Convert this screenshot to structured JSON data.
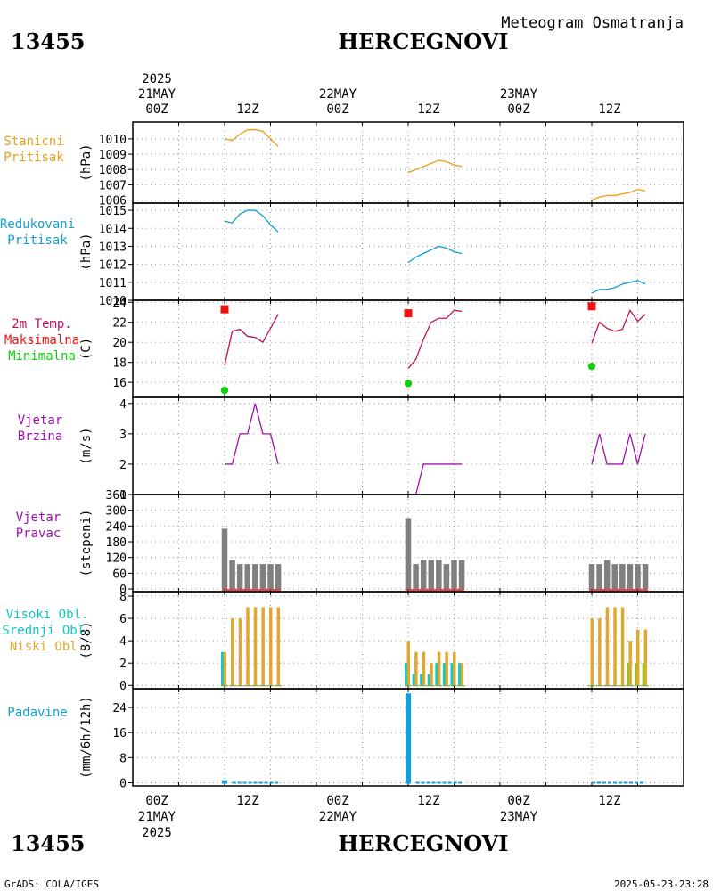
{
  "header": {
    "station_id": "13455",
    "station_name": "HERCEGNOVI",
    "subtitle": "Meteogram Osmatranja"
  },
  "footer": {
    "station_id": "13455",
    "station_name": "HERCEGNOVI",
    "credit": "GrADS: COLA/IGES",
    "timestamp": "2025-05-23-23:28"
  },
  "time_axis": {
    "year": "2025",
    "days": [
      "21MAY",
      "22MAY",
      "23MAY"
    ],
    "hour_labels": [
      "00Z",
      "12Z",
      "00Z",
      "12Z",
      "00Z",
      "12Z"
    ],
    "range_hours": [
      -6,
      66
    ]
  },
  "colors": {
    "pressure": "#e8a010",
    "reduced_pressure": "#10a0d0",
    "temperature": "#c0105a",
    "tmax": "#f01010",
    "tmin": "#10d010",
    "wind": "#a010b0",
    "direction_bar": "#808080",
    "direction_base": "#e01010",
    "high_cloud": "#10c8c8",
    "mid_cloud": "#90c030",
    "low_cloud": "#e0a830",
    "precip": "#10a0e0"
  },
  "chart_data": [
    {
      "type": "line",
      "id": "station_pressure",
      "title_lines": [
        "Stanicni",
        "Pritisak"
      ],
      "ylabel": "(hPa)",
      "ylim": [
        1005.8,
        1011.1
      ],
      "ticks": [
        1006,
        1007,
        1008,
        1009,
        1010
      ],
      "series": [
        {
          "name": "Stanicni Pritisak",
          "x": [
            6,
            7,
            8,
            9,
            10,
            11,
            12,
            13
          ],
          "values": [
            1010.0,
            1009.9,
            1010.3,
            1010.6,
            1010.6,
            1010.5,
            1010.0,
            1009.5
          ]
        },
        {
          "name": "Stanicni Pritisak",
          "x": [
            30,
            31,
            32,
            33,
            34,
            35,
            36,
            37
          ],
          "values": [
            1007.8,
            1008.0,
            1008.2,
            1008.4,
            1008.6,
            1008.5,
            1008.3,
            1008.2
          ]
        },
        {
          "name": "Stanicni Pritisak",
          "x": [
            54,
            55,
            56,
            57,
            58,
            59,
            60,
            61
          ],
          "values": [
            1006.0,
            1006.2,
            1006.3,
            1006.3,
            1006.4,
            1006.5,
            1006.7,
            1006.6
          ]
        }
      ]
    },
    {
      "type": "line",
      "id": "reduced_pressure",
      "title_lines": [
        "Redukovani",
        "Pritisak"
      ],
      "ylabel": "(hPa)",
      "ylim": [
        1010.0,
        1015.4
      ],
      "ticks": [
        1010,
        1011,
        1012,
        1013,
        1014,
        1015
      ],
      "series": [
        {
          "name": "Redukovani Pritisak",
          "x": [
            6,
            7,
            8,
            9,
            10,
            11,
            12,
            13
          ],
          "values": [
            1014.4,
            1014.3,
            1014.8,
            1015.0,
            1015.0,
            1014.7,
            1014.2,
            1013.8
          ]
        },
        {
          "name": "Redukovani Pritisak",
          "x": [
            30,
            31,
            32,
            33,
            34,
            35,
            36,
            37
          ],
          "values": [
            1012.1,
            1012.4,
            1012.6,
            1012.8,
            1013.0,
            1012.9,
            1012.7,
            1012.6
          ]
        },
        {
          "name": "Redukovani Pritisak",
          "x": [
            54,
            55,
            56,
            57,
            58,
            59,
            60,
            61
          ],
          "values": [
            1010.4,
            1010.6,
            1010.6,
            1010.7,
            1010.9,
            1011.0,
            1011.1,
            1010.9
          ]
        }
      ]
    },
    {
      "type": "line",
      "id": "temperature",
      "title_lines": [
        "2m Temp.",
        "Maksimalna",
        "Minimalna"
      ],
      "ylabel": "(C)",
      "ylim": [
        14.5,
        24.2
      ],
      "ticks": [
        16,
        18,
        20,
        22,
        24
      ],
      "series": [
        {
          "name": "2m Temp.",
          "x": [
            6,
            7,
            8,
            9,
            10,
            11,
            12,
            13
          ],
          "values": [
            17.7,
            21.1,
            21.3,
            20.6,
            20.5,
            20.0,
            21.4,
            22.8
          ]
        },
        {
          "name": "2m Temp.",
          "x": [
            30,
            31,
            32,
            33,
            34,
            35,
            36,
            37
          ],
          "values": [
            17.4,
            18.3,
            20.3,
            22.0,
            22.4,
            22.4,
            23.2,
            23.1
          ]
        },
        {
          "name": "2m Temp.",
          "x": [
            54,
            55,
            56,
            57,
            58,
            59,
            60,
            61
          ],
          "values": [
            19.9,
            22.0,
            21.4,
            21.1,
            21.3,
            23.2,
            22.1,
            22.8
          ]
        }
      ],
      "max_points": {
        "name": "Maksimalna",
        "x": [
          6,
          30,
          54
        ],
        "values": [
          23.3,
          22.9,
          23.6
        ]
      },
      "min_points": {
        "name": "Minimalna",
        "x": [
          6,
          30,
          54
        ],
        "values": [
          15.2,
          15.9,
          17.6
        ]
      }
    },
    {
      "type": "line",
      "id": "wind_speed",
      "title_lines": [
        "Vjetar",
        "Brzina"
      ],
      "ylabel": "(m/s)",
      "ylim": [
        1,
        4.2
      ],
      "ticks": [
        1,
        2,
        3,
        4
      ],
      "series": [
        {
          "name": "Vjetar Brzina",
          "x": [
            6,
            7,
            8,
            9,
            10,
            11,
            12,
            13
          ],
          "values": [
            2,
            2,
            3,
            3,
            4,
            3,
            3,
            2
          ]
        },
        {
          "name": "Vjetar Brzina",
          "x": [
            30,
            31,
            32,
            33,
            34,
            35,
            36,
            37
          ],
          "values": [
            1,
            1,
            2,
            2,
            2,
            2,
            2,
            2
          ]
        },
        {
          "name": "Vjetar Brzina",
          "x": [
            54,
            55,
            56,
            57,
            58,
            59,
            60,
            61
          ],
          "values": [
            2,
            3,
            2,
            2,
            2,
            3,
            2,
            3
          ]
        }
      ]
    },
    {
      "type": "bar",
      "id": "wind_direction",
      "title_lines": [
        "Vjetar",
        "Pravac"
      ],
      "ylabel": "(stepeni)",
      "ylim": [
        -10,
        360
      ],
      "ticks": [
        0,
        60,
        120,
        180,
        240,
        300,
        360
      ],
      "x": [
        6,
        7,
        8,
        9,
        10,
        11,
        12,
        13,
        30,
        31,
        32,
        33,
        34,
        35,
        36,
        37,
        54,
        55,
        56,
        57,
        58,
        59,
        60,
        61
      ],
      "values": [
        230,
        110,
        95,
        95,
        95,
        95,
        95,
        95,
        270,
        95,
        110,
        110,
        110,
        95,
        110,
        110,
        95,
        95,
        110,
        95,
        95,
        95,
        95,
        95
      ]
    },
    {
      "type": "bar",
      "id": "clouds",
      "title_lines": [
        "Visoki Obl.",
        "Srednji Obl.",
        "Niski Obl."
      ],
      "ylabel": "(8/8)",
      "ylim": [
        -0.3,
        8.4
      ],
      "ticks": [
        0,
        2,
        4,
        6,
        8
      ],
      "x": [
        6,
        7,
        8,
        9,
        10,
        11,
        12,
        13,
        30,
        31,
        32,
        33,
        34,
        35,
        36,
        37,
        54,
        55,
        56,
        57,
        58,
        59,
        60,
        61
      ],
      "series": [
        {
          "name": "Niski Obl.",
          "values": [
            3,
            6,
            6,
            7,
            7,
            7,
            7,
            7,
            4,
            3,
            3,
            2,
            3,
            3,
            3,
            2,
            6,
            6,
            7,
            7,
            7,
            4,
            5,
            5
          ]
        },
        {
          "name": "Srednji Obl.",
          "values": [
            2,
            0,
            0,
            0,
            0,
            0,
            0,
            0,
            2,
            1,
            1,
            1,
            2,
            2,
            2,
            2,
            0,
            0,
            0,
            0,
            0,
            2,
            2,
            2
          ]
        },
        {
          "name": "Visoki Obl.",
          "values": [
            3,
            0,
            0,
            0,
            0,
            0,
            0,
            0,
            2,
            1,
            1,
            1,
            2,
            2,
            2,
            2,
            0,
            0,
            0,
            0,
            0,
            0,
            0,
            0
          ]
        }
      ]
    },
    {
      "type": "bar",
      "id": "precipitation",
      "title_lines": [
        "Padavine"
      ],
      "ylabel": "(mm/6h/12h)",
      "ylim": [
        -1,
        30
      ],
      "ticks": [
        0,
        8,
        16,
        24
      ],
      "x": [
        6,
        30
      ],
      "values": [
        0.8,
        28.5
      ],
      "trace_x": [
        [
          7,
          13
        ],
        [
          31,
          37
        ],
        [
          54,
          61
        ]
      ]
    }
  ]
}
